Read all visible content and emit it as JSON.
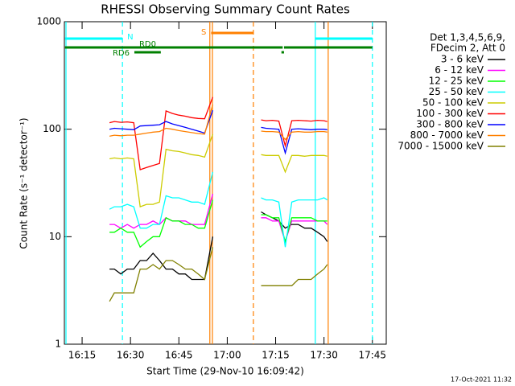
{
  "chart_data": {
    "type": "line",
    "title": "RHESSI Observing Summary Count Rates",
    "x_label": "Start Time (29-Nov-10 16:09:42)",
    "y_label": "Count Rate (s⁻¹ detector⁻¹)",
    "footer": "17-Oct-2021 11:32",
    "legend_header": [
      "Det 1,3,4,5,6,9,",
      "FDecim 2, Att 0"
    ],
    "log_y": true,
    "xlim": [
      9.5,
      109.3
    ],
    "xticks": [
      {
        "value": 15,
        "label": "16:15"
      },
      {
        "value": 30,
        "label": "16:30"
      },
      {
        "value": 45,
        "label": "16:45"
      },
      {
        "value": 60,
        "label": "17:00"
      },
      {
        "value": 75,
        "label": "17:15"
      },
      {
        "value": 90,
        "label": "17:30"
      },
      {
        "value": 105,
        "label": "17:45"
      }
    ],
    "ylim": [
      1,
      1000
    ],
    "yticks": [
      1,
      10,
      100,
      1000
    ],
    "x": [
      23.5,
      25,
      27,
      29,
      31,
      33,
      35,
      37,
      39,
      41,
      43,
      45,
      47,
      49,
      51,
      53,
      55.5,
      56,
      70.5,
      72,
      74,
      76,
      78,
      80,
      82,
      84,
      86,
      88,
      90,
      91
    ],
    "series": [
      {
        "name": "3 - 6 keV",
        "color": "#000000",
        "values": [
          5,
          5,
          4.5,
          5,
          5,
          6,
          6,
          7,
          6,
          5,
          5,
          4.5,
          4.5,
          4,
          4,
          4,
          10,
          null,
          17,
          16,
          15,
          14,
          12,
          13,
          13,
          12,
          12,
          11,
          10,
          9
        ]
      },
      {
        "name": "6 - 12 keV",
        "color": "#ff00ff",
        "values": [
          13,
          13,
          12,
          13,
          12,
          13,
          13,
          14,
          13,
          15,
          14,
          14,
          14,
          13,
          13,
          13,
          25,
          null,
          15,
          15,
          14,
          14,
          9,
          14,
          14,
          14,
          14,
          14,
          14,
          13
        ]
      },
      {
        "name": "12 - 25 keV",
        "color": "#00ff00",
        "values": [
          11,
          11,
          12,
          11,
          11,
          8,
          9,
          10,
          10,
          15,
          14,
          14,
          13,
          13,
          12,
          12,
          22,
          null,
          16,
          16,
          15,
          15,
          9,
          15,
          15,
          15,
          15,
          14,
          14,
          14
        ]
      },
      {
        "name": "25 - 50 keV",
        "color": "#00ffff",
        "values": [
          18,
          19,
          19,
          20,
          19,
          12,
          12,
          13,
          13,
          24,
          23,
          23,
          22,
          21,
          21,
          20,
          40,
          null,
          23,
          22,
          22,
          21,
          8,
          21,
          22,
          22,
          22,
          22,
          23,
          22
        ]
      },
      {
        "name": "50 - 100 keV",
        "color": "#cccc00",
        "values": [
          53,
          54,
          53,
          54,
          53,
          19,
          20,
          20,
          21,
          65,
          63,
          62,
          60,
          58,
          57,
          55,
          90,
          null,
          58,
          57,
          57,
          57,
          40,
          57,
          57,
          56,
          57,
          57,
          57,
          56
        ]
      },
      {
        "name": "100 - 300 keV",
        "color": "#ff0000",
        "values": [
          115,
          118,
          116,
          117,
          115,
          42,
          44,
          46,
          48,
          148,
          140,
          135,
          132,
          128,
          126,
          125,
          199,
          null,
          122,
          120,
          121,
          119,
          70,
          120,
          121,
          120,
          119,
          121,
          120,
          118
        ]
      },
      {
        "name": "300 - 800 keV",
        "color": "#0000ff",
        "values": [
          100,
          102,
          101,
          100,
          99,
          107,
          108,
          109,
          110,
          118,
          112,
          108,
          104,
          100,
          96,
          92,
          150,
          null,
          104,
          102,
          101,
          100,
          60,
          100,
          101,
          100,
          99,
          100,
          100,
          99
        ]
      },
      {
        "name": "800 - 7000 keV",
        "color": "#ff8000",
        "values": [
          86,
          88,
          87,
          88,
          88,
          90,
          92,
          94,
          95,
          102,
          100,
          97,
          95,
          93,
          91,
          90,
          170,
          null,
          96,
          95,
          95,
          94,
          80,
          94,
          95,
          94,
          94,
          95,
          95,
          94
        ]
      },
      {
        "name": "7000 - 15000 keV",
        "color": "#808000",
        "values": [
          2.5,
          3,
          3,
          3,
          3,
          5,
          5,
          5.5,
          5,
          6,
          6,
          5.5,
          5,
          5,
          4.5,
          4,
          8,
          null,
          3.5,
          3.5,
          3.5,
          3.5,
          3.5,
          3.5,
          4,
          4,
          4,
          4.5,
          5,
          5.5
        ]
      }
    ],
    "flags": [
      {
        "name": "S",
        "color": "#ff8000",
        "ranges": [
          [
            55,
            68.1
          ]
        ]
      },
      {
        "name": "N",
        "color": "#00ffff",
        "ranges": [
          [
            9.7,
            27.5
          ],
          [
            87.3,
            105
          ]
        ]
      },
      {
        "name": "RD0",
        "color": "#008000",
        "ranges": [
          [
            9.7,
            77.2
          ],
          [
            77.6,
            105
          ]
        ]
      },
      {
        "name": "RD6",
        "color": "#008000",
        "ranges": [
          [
            31.2,
            39.4
          ],
          [
            76.8,
            77.6
          ]
        ]
      }
    ],
    "markers": [
      {
        "x": 10.0,
        "color": "#00ffff",
        "dashed": false
      },
      {
        "x": 27.5,
        "color": "#00ffff",
        "dashed": true
      },
      {
        "x": 54.6,
        "color": "#ff8000",
        "dashed": false
      },
      {
        "x": 55.4,
        "color": "#ff8000",
        "dashed": false
      },
      {
        "x": 68.1,
        "color": "#ff8000",
        "dashed": true
      },
      {
        "x": 87.3,
        "color": "#00ffff",
        "dashed": false
      },
      {
        "x": 91.3,
        "color": "#ff8000",
        "dashed": false
      },
      {
        "x": 105,
        "color": "#00ffff",
        "dashed": true
      }
    ]
  }
}
